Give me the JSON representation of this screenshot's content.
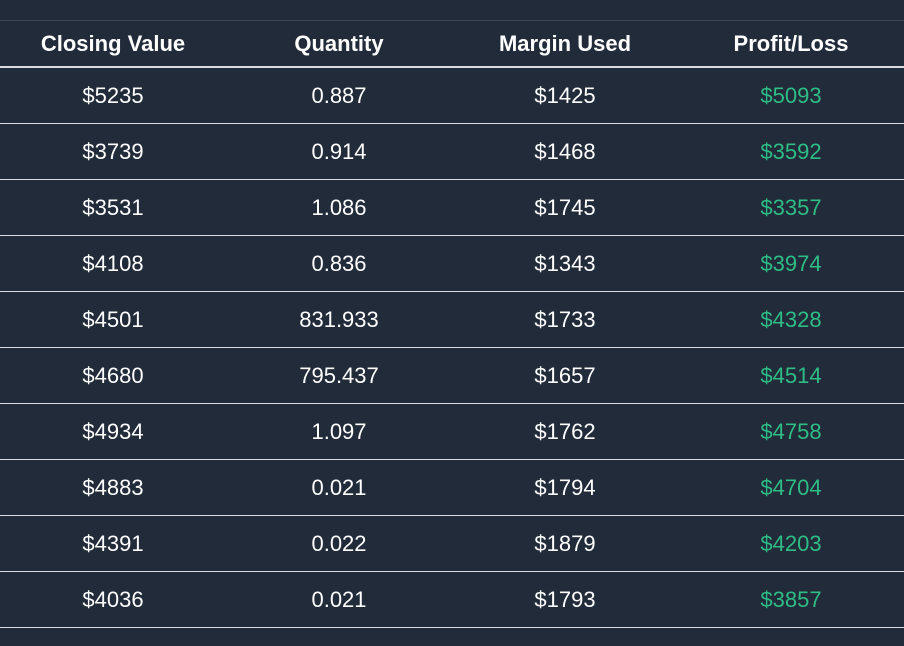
{
  "colors": {
    "background": "#212b3a",
    "row_border": "#d9dde2",
    "header_text": "#ffffff",
    "cell_text": "#ffffff",
    "profit_text": "#2ebd85"
  },
  "chart_data": {
    "type": "table",
    "columns": [
      "Closing Value",
      "Quantity",
      "Margin Used",
      "Profit/Loss"
    ],
    "rows": [
      {
        "closing_value": "$5235",
        "quantity": "0.887",
        "margin_used": "$1425",
        "profit_loss": "$5093"
      },
      {
        "closing_value": "$3739",
        "quantity": "0.914",
        "margin_used": "$1468",
        "profit_loss": "$3592"
      },
      {
        "closing_value": "$3531",
        "quantity": "1.086",
        "margin_used": "$1745",
        "profit_loss": "$3357"
      },
      {
        "closing_value": "$4108",
        "quantity": "0.836",
        "margin_used": "$1343",
        "profit_loss": "$3974"
      },
      {
        "closing_value": "$4501",
        "quantity": "831.933",
        "margin_used": "$1733",
        "profit_loss": "$4328"
      },
      {
        "closing_value": "$4680",
        "quantity": "795.437",
        "margin_used": "$1657",
        "profit_loss": "$4514"
      },
      {
        "closing_value": "$4934",
        "quantity": "1.097",
        "margin_used": "$1762",
        "profit_loss": "$4758"
      },
      {
        "closing_value": "$4883",
        "quantity": "0.021",
        "margin_used": "$1794",
        "profit_loss": "$4704"
      },
      {
        "closing_value": "$4391",
        "quantity": "0.022",
        "margin_used": "$1879",
        "profit_loss": "$4203"
      },
      {
        "closing_value": "$4036",
        "quantity": "0.021",
        "margin_used": "$1793",
        "profit_loss": "$3857"
      }
    ]
  }
}
